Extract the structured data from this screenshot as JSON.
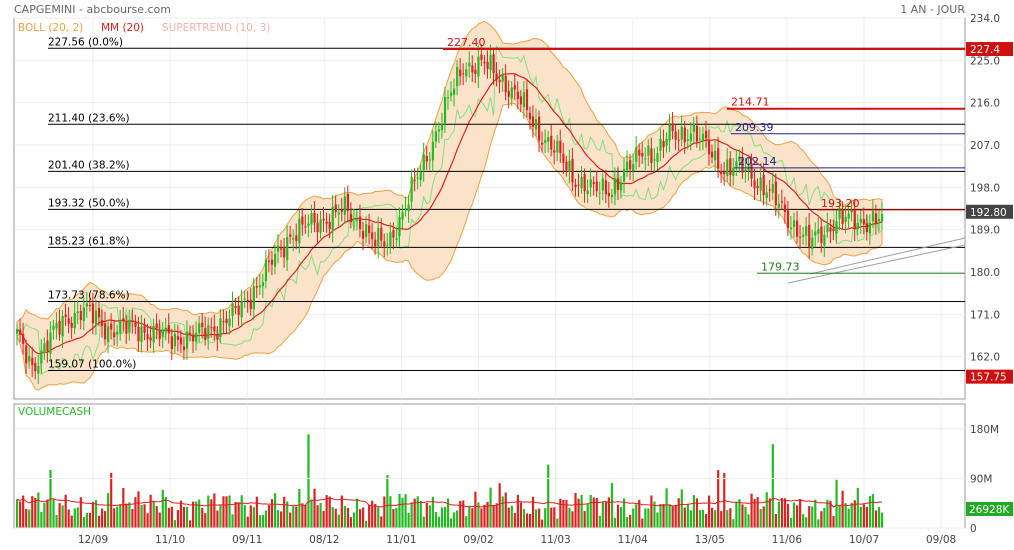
{
  "header": {
    "title": "CAPGEMINI - abcbourse.com",
    "period": "1 AN - JOUR",
    "legend": [
      {
        "label": "BOLL (20, 2)",
        "color": "#f0a040"
      },
      {
        "label": "MM (20)",
        "color": "#e02020"
      },
      {
        "label": "SUPERTREND (10, 3)",
        "color": "#f4b0b0"
      }
    ]
  },
  "colors": {
    "up": "#22bb22",
    "down": "#dd2222",
    "bollinger_fill": "#fbe3c9",
    "bollinger_line": "#f0a040",
    "mm_line": "#e02020",
    "supertrend_up": "#80e080",
    "supertrend_down": "#f4b0b0",
    "volume_avg": "#e02020"
  },
  "chart_data": [
    {
      "type": "candlestick",
      "title": "CAPGEMINI",
      "y_axis": {
        "side": "right",
        "ticks": [
          234.0,
          225.0,
          216.0,
          207.0,
          198.0,
          189.0,
          180.0,
          171.0,
          162.0
        ],
        "ylim": [
          153.0,
          234.0
        ]
      },
      "x_axis": {
        "ticks": [
          "12/09",
          "11/10",
          "09/11",
          "08/12",
          "11/01",
          "09/02",
          "11/03",
          "11/04",
          "13/05",
          "11/06",
          "10/07",
          "09/08"
        ]
      },
      "fibonacci": [
        {
          "label": "227.56  (0.0%)",
          "value": 227.56
        },
        {
          "label": "211.40  (23.6%)",
          "value": 211.4
        },
        {
          "label": "201.40  (38.2%)",
          "value": 201.4
        },
        {
          "label": "193.32  (50.0%)",
          "value": 193.32
        },
        {
          "label": "185.23  (61.8%)",
          "value": 185.23
        },
        {
          "label": "173.73  (78.6%)",
          "value": 173.73
        },
        {
          "label": "159.07  (100.0%)",
          "value": 159.07
        }
      ],
      "price_levels": [
        {
          "label": "227.40",
          "value": 227.4,
          "color": "#d01010"
        },
        {
          "label": "214.71",
          "value": 214.71,
          "color": "#d01010"
        },
        {
          "label": "209.39",
          "value": 209.39,
          "color": "#202090"
        },
        {
          "label": "202.14",
          "value": 202.14,
          "color": "#202090"
        },
        {
          "label": "193.20",
          "value": 193.2,
          "color": "#d01010"
        },
        {
          "label": "179.73",
          "value": 179.73,
          "color": "#208020"
        }
      ],
      "price_badges": [
        {
          "label": "227.4",
          "value": 227.4,
          "bg": "#d01010"
        },
        {
          "label": "192.80",
          "value": 192.8,
          "bg": "#444444"
        },
        {
          "label": "157.75",
          "value": 157.75,
          "bg": "#d01010"
        }
      ],
      "close_path": [
        [
          0,
          166
        ],
        [
          5,
          160
        ],
        [
          10,
          165
        ],
        [
          16,
          170
        ],
        [
          22,
          172
        ],
        [
          30,
          168
        ],
        [
          40,
          168
        ],
        [
          50,
          166
        ],
        [
          58,
          166
        ],
        [
          64,
          168
        ],
        [
          72,
          171
        ],
        [
          80,
          178
        ],
        [
          90,
          188
        ],
        [
          100,
          191
        ],
        [
          108,
          193
        ],
        [
          114,
          190
        ],
        [
          118,
          186
        ],
        [
          122,
          186
        ],
        [
          128,
          194
        ],
        [
          134,
          203
        ],
        [
          140,
          213
        ],
        [
          147,
          224
        ],
        [
          154,
          224
        ],
        [
          160,
          221
        ],
        [
          166,
          216
        ],
        [
          172,
          210
        ],
        [
          178,
          205
        ],
        [
          184,
          200
        ],
        [
          190,
          197
        ],
        [
          196,
          198
        ],
        [
          202,
          202
        ],
        [
          206,
          206
        ],
        [
          211,
          205
        ],
        [
          215,
          209
        ],
        [
          222,
          210
        ],
        [
          228,
          206
        ],
        [
          233,
          202
        ],
        [
          240,
          202
        ],
        [
          246,
          198
        ],
        [
          250,
          195
        ],
        [
          256,
          190
        ],
        [
          261,
          186
        ],
        [
          266,
          189
        ],
        [
          270,
          191
        ],
        [
          274,
          191
        ],
        [
          278,
          191
        ],
        [
          286,
          191
        ]
      ]
    },
    {
      "type": "bar",
      "title": "VOLUMECASH",
      "y_axis": {
        "side": "right",
        "ticks": [
          "180M",
          "90M",
          "0"
        ]
      },
      "unit": "M",
      "last_value_label": "26928K"
    }
  ]
}
